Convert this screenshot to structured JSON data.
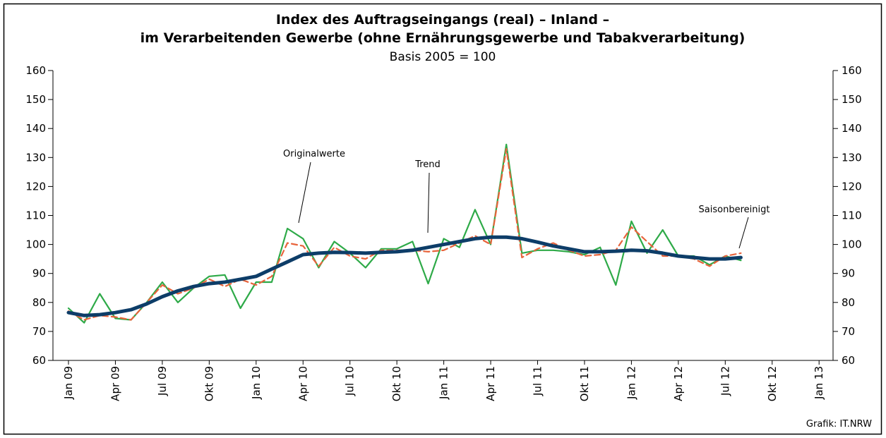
{
  "chart_data": {
    "type": "line",
    "title": "Index des Auftragseingangs (real) – Inland –",
    "title2": "im Verarbeitenden Gewerbe (ohne Ernährungsgewerbe und Tabakverarbeitung)",
    "subtitle": "Basis 2005 = 100",
    "categories": [
      "Jan 09",
      null,
      null,
      "Apr 09",
      null,
      null,
      "Jul 09",
      null,
      null,
      "Okt 09",
      null,
      null,
      "Jan 10",
      null,
      null,
      "Apr 10",
      null,
      null,
      "Jul 10",
      null,
      null,
      "Okt 10",
      null,
      null,
      "Jan 11",
      null,
      null,
      "Apr 11",
      null,
      null,
      "Jul 11",
      null,
      null,
      "Okt 11",
      null,
      null,
      "Jan 12",
      null,
      null,
      "Apr 12",
      null,
      null,
      "Jul 12",
      null,
      null,
      "Okt 12",
      null,
      null,
      "Jan 13"
    ],
    "series": [
      {
        "name": "Originalwerte",
        "color": "#2eaa48",
        "dash": false,
        "width": 2.2,
        "values": [
          78,
          73,
          83,
          74.5,
          74,
          80,
          87,
          80,
          85,
          89,
          89.5,
          78,
          87,
          87,
          105.5,
          102,
          92,
          101,
          97,
          92,
          98.5,
          98.5,
          101,
          86.5,
          102,
          99,
          112,
          100,
          134.5,
          97,
          98,
          98,
          97.5,
          96.5,
          99,
          86,
          108,
          97,
          105,
          96,
          96,
          93,
          96,
          94.5,
          null,
          null,
          null,
          null,
          null
        ]
      },
      {
        "name": "Saisonbereinigt",
        "color": "#e8643c",
        "dash": true,
        "width": 2.2,
        "values": [
          77,
          74,
          75.5,
          75,
          74,
          80,
          86,
          83,
          85,
          88,
          85.5,
          88,
          86,
          89,
          100.5,
          99.5,
          92.5,
          99,
          96,
          95,
          98,
          98,
          98,
          97.5,
          98,
          100.5,
          103,
          100,
          133,
          95.5,
          98.5,
          100.5,
          98,
          96,
          96.5,
          98,
          106,
          101,
          96,
          96,
          95,
          92.5,
          96,
          97,
          null,
          null,
          null,
          null,
          null
        ]
      },
      {
        "name": "Trend",
        "color": "#0d3d68",
        "dash": false,
        "width": 5,
        "values": [
          76.5,
          75.5,
          75.8,
          76.5,
          77.5,
          79.5,
          82,
          84,
          85.5,
          86.5,
          87,
          88,
          89,
          91.5,
          94,
          96.5,
          97,
          97.3,
          97.2,
          97,
          97.3,
          97.5,
          98,
          99,
          100,
          101,
          102,
          102.5,
          102.5,
          102,
          100.8,
          99.5,
          98.5,
          97.5,
          97.5,
          97.7,
          98,
          97.8,
          97,
          96,
          95.5,
          95,
          95,
          95.5,
          null,
          null,
          null,
          null,
          null
        ]
      }
    ],
    "ylim": [
      60,
      160
    ],
    "yticks": [
      60,
      70,
      80,
      90,
      100,
      110,
      120,
      130,
      140,
      150,
      160
    ],
    "source": "Grafik: IT.NRW"
  }
}
